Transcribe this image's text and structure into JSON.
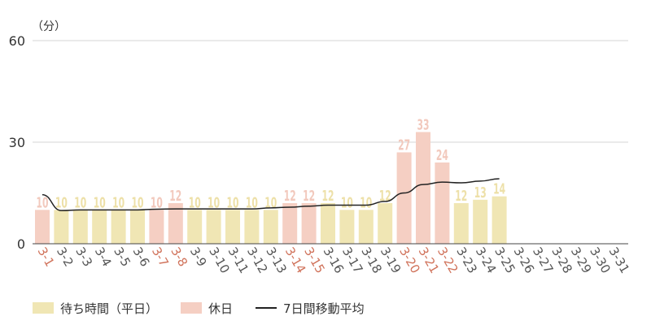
{
  "chart_data": {
    "type": "bar",
    "unit_label": "（分）",
    "ylim": [
      0,
      60
    ],
    "yticks": [
      0,
      30,
      60
    ],
    "grid": true,
    "categories": [
      "3-1",
      "3-2",
      "3-3",
      "3-4",
      "3-5",
      "3-6",
      "3-7",
      "3-8",
      "3-9",
      "3-10",
      "3-11",
      "3-12",
      "3-13",
      "3-14",
      "3-15",
      "3-16",
      "3-17",
      "3-18",
      "3-19",
      "3-20",
      "3-21",
      "3-22",
      "3-23",
      "3-24",
      "3-25",
      "3-26",
      "3-27",
      "3-28",
      "3-29",
      "3-30",
      "3-31"
    ],
    "holidays": [
      true,
      false,
      false,
      false,
      false,
      false,
      true,
      true,
      false,
      false,
      false,
      false,
      false,
      true,
      true,
      false,
      false,
      false,
      false,
      true,
      true,
      true,
      false,
      false,
      false,
      false,
      false,
      false,
      false,
      false,
      false
    ],
    "series": [
      {
        "name": "待ち時間（平日）",
        "type": "bar",
        "color": "#f0e6b4",
        "label_color": "#ede0a8"
      },
      {
        "name": "休日",
        "type": "bar",
        "color": "#f5cfc3",
        "label_color": "#f2c9bd"
      },
      {
        "name": "7日間移動平均",
        "type": "line",
        "color": "#222222"
      }
    ],
    "values": [
      10,
      10,
      10,
      10,
      10,
      10,
      10,
      12,
      10,
      10,
      10,
      10,
      10,
      12,
      12,
      12,
      10,
      10,
      12,
      27,
      33,
      24,
      12,
      13,
      14,
      null,
      null,
      null,
      null,
      null,
      null
    ],
    "moving_average": [
      14.5,
      9.8,
      10,
      10,
      10,
      10,
      10.2,
      10.3,
      10.3,
      10.3,
      10.3,
      10.3,
      10.6,
      10.8,
      11.1,
      11.4,
      11.4,
      11.4,
      12.5,
      15,
      17.5,
      18.2,
      18,
      18.5,
      19.2,
      null,
      null,
      null,
      null,
      null,
      null
    ],
    "tick_colors": {
      "weekday": "#555555",
      "holiday": "#d0725a"
    }
  },
  "legend": {
    "weekday": "待ち時間（平日）",
    "holiday": "休日",
    "average": "7日間移動平均"
  }
}
